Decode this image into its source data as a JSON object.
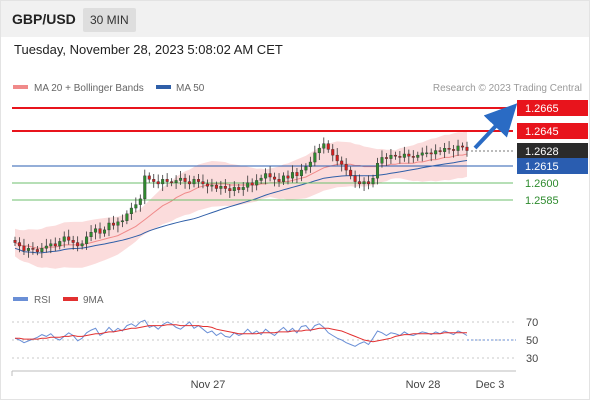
{
  "header": {
    "symbol": "GBP/USD",
    "timeframe": "30 MIN",
    "datetime": "Tuesday, November 28, 2023 5:08:02 AM CET"
  },
  "legend": {
    "ma20": "MA 20 + Bollinger Bands",
    "ma50": "MA 50",
    "credit": "Research © 2023 Trading Central"
  },
  "levels": {
    "resistance": [
      "1.2665",
      "1.2645"
    ],
    "current": "1.2628",
    "pivot": "1.2615",
    "support": [
      "1.2600",
      "1.2585"
    ]
  },
  "xaxis": {
    "labels": [
      "Nov 27",
      "Nov 28",
      "Dec 3"
    ]
  },
  "rsi": {
    "legend_rsi": "RSI",
    "legend_ma": "9MA",
    "ticks": [
      "70",
      "50",
      "30"
    ]
  },
  "colors": {
    "bull": "#2e8b2e",
    "bear": "#d42020",
    "ma20": "#f08a8a",
    "ma50": "#2f5fa8",
    "band_fill": "#fbdcdc",
    "resistance": "#e8141c",
    "pivot": "#2a5db0",
    "support": "#6cbf6c",
    "current_tag": "#2b2b2b",
    "arrow": "#2a6bc4",
    "rsi_line": "#6a8fd6",
    "rsi_ma": "#e23030"
  },
  "chart_data": {
    "type": "candlestick",
    "symbol": "GBP/USD",
    "interval": "30 MIN",
    "y_range": [
      1.2535,
      1.2675
    ],
    "levels": [
      {
        "kind": "resistance",
        "value": 1.2665
      },
      {
        "kind": "resistance",
        "value": 1.2645
      },
      {
        "kind": "last",
        "value": 1.2628
      },
      {
        "kind": "pivot",
        "value": 1.2615
      },
      {
        "kind": "support",
        "value": 1.26
      },
      {
        "kind": "support",
        "value": 1.2585
      }
    ],
    "close": [
      1.2548,
      1.2545,
      1.2541,
      1.2543,
      1.2542,
      1.254,
      1.2543,
      1.2545,
      1.2547,
      1.2545,
      1.2549,
      1.2553,
      1.255,
      1.2548,
      1.2545,
      1.2547,
      1.2553,
      1.2557,
      1.256,
      1.2556,
      1.2559,
      1.2565,
      1.2563,
      1.2566,
      1.2567,
      1.2573,
      1.2578,
      1.2581,
      1.2586,
      1.2606,
      1.2603,
      1.2601,
      1.2599,
      1.2603,
      1.2601,
      1.26,
      1.2602,
      1.2604,
      1.2601,
      1.2599,
      1.2603,
      1.2601,
      1.2599,
      1.2597,
      1.2598,
      1.2595,
      1.2597,
      1.2595,
      1.2593,
      1.2596,
      1.2594,
      1.2596,
      1.26,
      1.2598,
      1.2602,
      1.2604,
      1.2608,
      1.2605,
      1.2603,
      1.2601,
      1.2606,
      1.2604,
      1.2609,
      1.2606,
      1.2611,
      1.2614,
      1.2618,
      1.2626,
      1.263,
      1.2634,
      1.2629,
      1.2624,
      1.2619,
      1.2616,
      1.2611,
      1.2606,
      1.2601,
      1.2599,
      1.2601,
      1.2599,
      1.2604,
      1.2617,
      1.2622,
      1.2621,
      1.2624,
      1.2623,
      1.2622,
      1.2625,
      1.2623,
      1.2622,
      1.2624,
      1.2626,
      1.2626,
      1.2625,
      1.2628,
      1.2627,
      1.263,
      1.2629,
      1.2628,
      1.2632,
      1.2631,
      1.2628
    ],
    "ma20_approx": [
      1.2548,
      1.2546,
      1.2545,
      1.2545,
      1.2544,
      1.2543,
      1.2543,
      1.2544,
      1.2544,
      1.2544,
      1.2545,
      1.2546,
      1.2546,
      1.2546,
      1.2546,
      1.2546,
      1.2547,
      1.2548,
      1.2549,
      1.255,
      1.2551,
      1.2552,
      1.2553,
      1.2554,
      1.2556,
      1.2558,
      1.256,
      1.2562,
      1.2565,
      1.2568,
      1.2571,
      1.2574,
      1.2577,
      1.258,
      1.2582,
      1.2584,
      1.2587,
      1.2589,
      1.2591,
      1.2592,
      1.2594,
      1.2596,
      1.2597,
      1.2598,
      1.2599,
      1.2599,
      1.2599,
      1.2599,
      1.2598,
      1.2598,
      1.2598,
      1.2598,
      1.2598,
      1.2598,
      1.2598,
      1.2599,
      1.2599,
      1.26,
      1.26,
      1.26,
      1.2601,
      1.2601,
      1.2602,
      1.2603,
      1.2604,
      1.2605,
      1.2607,
      1.2609,
      1.2611,
      1.2613,
      1.2614,
      1.2615,
      1.2616,
      1.2616,
      1.2616,
      1.2616,
      1.2615,
      1.2615,
      1.2614,
      1.2614,
      1.2614,
      1.2614,
      1.2615,
      1.2615,
      1.2616,
      1.2616,
      1.2617,
      1.2617,
      1.2617,
      1.2617,
      1.2618,
      1.2618,
      1.2619,
      1.262,
      1.262,
      1.2621,
      1.2622,
      1.2622,
      1.2623,
      1.2624,
      1.2624,
      1.2625
    ],
    "rsi": {
      "ticks": [
        70,
        50,
        30
      ],
      "values": [
        52,
        50,
        47,
        49,
        51,
        53,
        56,
        54,
        57,
        52,
        50,
        54,
        58,
        55,
        49,
        52,
        58,
        61,
        63,
        55,
        58,
        64,
        59,
        63,
        60,
        66,
        68,
        65,
        70,
        72,
        64,
        66,
        62,
        67,
        70,
        68,
        64,
        62,
        66,
        70,
        63,
        66,
        62,
        58,
        60,
        55,
        58,
        54,
        53,
        58,
        55,
        57,
        62,
        57,
        60,
        56,
        62,
        58,
        55,
        60,
        64,
        59,
        63,
        58,
        65,
        66,
        60,
        66,
        68,
        64,
        58,
        55,
        52,
        50,
        47,
        45,
        43,
        46,
        48,
        45,
        52,
        60,
        58,
        55,
        58,
        57,
        55,
        59,
        56,
        55,
        57,
        59,
        58,
        56,
        59,
        57,
        60,
        58,
        56,
        60,
        58,
        55
      ],
      "ma9": [
        52,
        52,
        51,
        51,
        51,
        51,
        52,
        52,
        53,
        53,
        53,
        54,
        54,
        55,
        54,
        54,
        55,
        56,
        57,
        57,
        58,
        59,
        59,
        60,
        61,
        62,
        63,
        63,
        64,
        65,
        66,
        66,
        66,
        66,
        67,
        67,
        67,
        66,
        66,
        66,
        66,
        66,
        65,
        65,
        64,
        62,
        61,
        60,
        59,
        58,
        57,
        57,
        57,
        57,
        57,
        58,
        58,
        58,
        58,
        59,
        59,
        59,
        60,
        60,
        60,
        61,
        61,
        62,
        63,
        63,
        63,
        62,
        61,
        60,
        58,
        56,
        54,
        52,
        50,
        49,
        48,
        49,
        50,
        51,
        52,
        54,
        55,
        56,
        56,
        57,
        57,
        57,
        57,
        57,
        57,
        57,
        58,
        58,
        58,
        58,
        58,
        58
      ]
    },
    "x_labels": [
      "Nov 27",
      "Nov 28",
      "Dec 3"
    ]
  }
}
